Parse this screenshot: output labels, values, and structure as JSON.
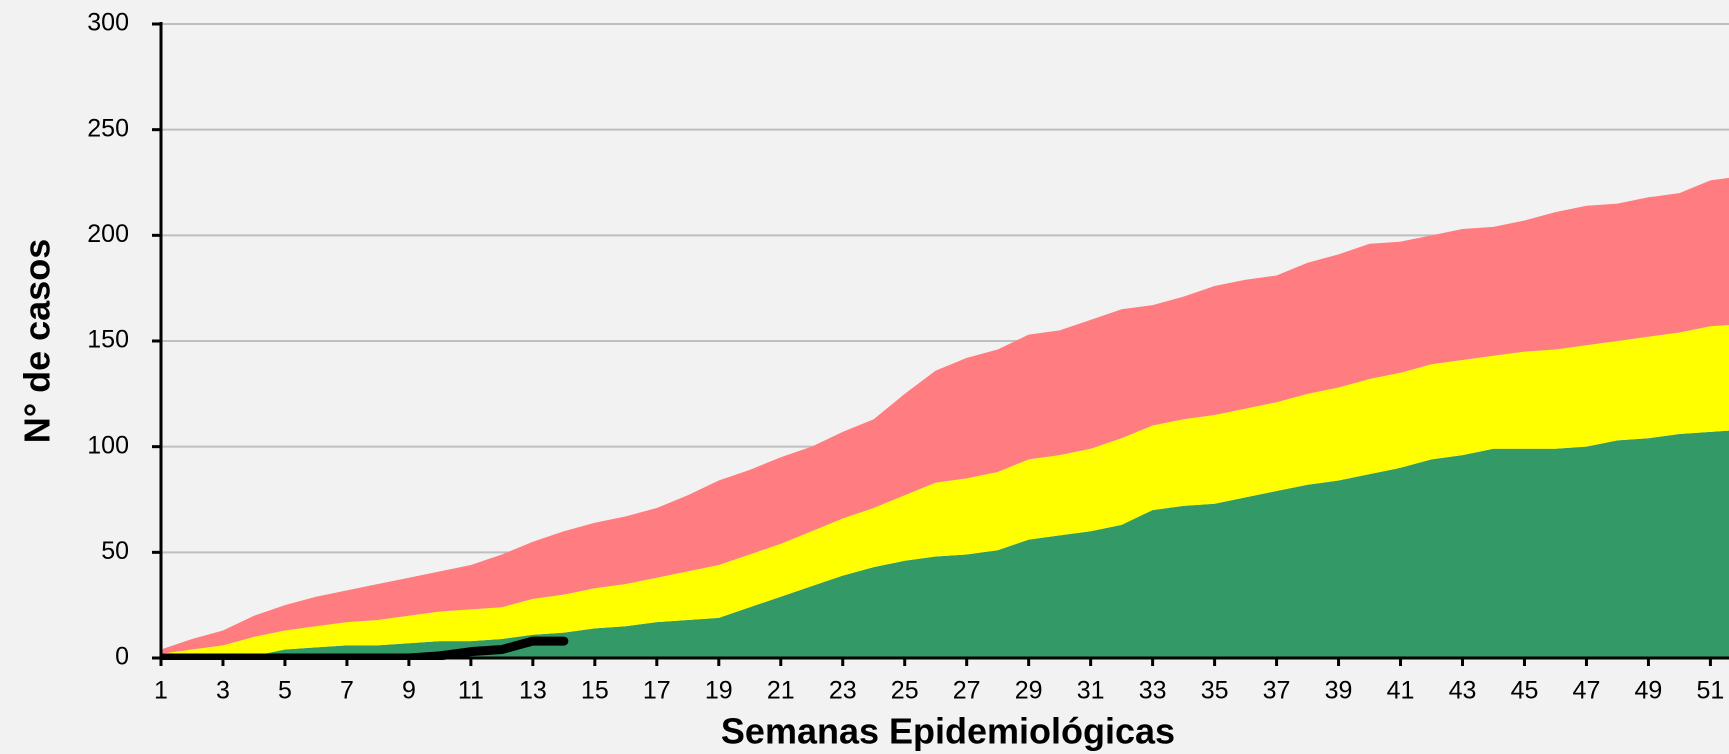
{
  "chart_data": {
    "type": "stacked_area",
    "x_label": "Semanas Epidemiológicas",
    "y_label": "N° de casos",
    "x": [
      1,
      2,
      3,
      4,
      5,
      6,
      7,
      8,
      9,
      10,
      11,
      12,
      13,
      14,
      15,
      16,
      17,
      18,
      19,
      20,
      21,
      22,
      23,
      24,
      25,
      26,
      27,
      28,
      29,
      30,
      31,
      32,
      33,
      34,
      35,
      36,
      37,
      38,
      39,
      40,
      41,
      42,
      43,
      44,
      45,
      46,
      47,
      48,
      49,
      50,
      51,
      52
    ],
    "xlim": [
      1,
      51.6
    ],
    "xticks": [
      1,
      3,
      5,
      7,
      9,
      11,
      13,
      15,
      17,
      19,
      21,
      23,
      25,
      27,
      29,
      31,
      33,
      35,
      37,
      39,
      41,
      43,
      45,
      47,
      49,
      51
    ],
    "ylim": [
      0,
      300
    ],
    "yticks": [
      0,
      50,
      100,
      150,
      200,
      250,
      300
    ],
    "grid": true,
    "series": [
      {
        "color": "#339966",
        "values": [
          0,
          0,
          0,
          1,
          4,
          5,
          6,
          6,
          7,
          8,
          8,
          9,
          11,
          12,
          14,
          15,
          17,
          18,
          19,
          24,
          29,
          34,
          39,
          43,
          46,
          48,
          49,
          51,
          56,
          58,
          60,
          63,
          70,
          72,
          73,
          76,
          79,
          82,
          84,
          87,
          90,
          94,
          96,
          99,
          99,
          99,
          100,
          103,
          104,
          106,
          107,
          108
        ]
      },
      {
        "color": "#ffff00",
        "values": [
          2,
          4,
          6,
          9,
          9,
          10,
          11,
          12,
          13,
          14,
          15,
          15,
          17,
          18,
          19,
          20,
          21,
          23,
          25,
          25,
          25,
          26,
          27,
          28,
          31,
          35,
          36,
          37,
          38,
          38,
          39,
          41,
          40,
          41,
          42,
          42,
          42,
          43,
          44,
          45,
          45,
          45,
          45,
          44,
          46,
          47,
          48,
          47,
          48,
          48,
          50,
          50
        ]
      },
      {
        "color": "#ff7c80",
        "values": [
          2,
          5,
          7,
          10,
          12,
          14,
          15,
          17,
          18,
          19,
          21,
          25,
          27,
          30,
          31,
          32,
          33,
          36,
          40,
          40,
          41,
          40,
          41,
          42,
          48,
          53,
          57,
          58,
          59,
          59,
          61,
          61,
          57,
          58,
          61,
          61,
          60,
          62,
          63,
          64,
          62,
          61,
          62,
          61,
          62,
          65,
          66,
          65,
          66,
          66,
          69,
          70
        ]
      }
    ],
    "line": {
      "color": "#000000",
      "values": [
        0,
        0,
        0,
        0,
        0,
        0,
        0,
        0,
        0,
        1,
        3,
        4,
        8,
        8,
        null,
        null,
        null,
        null,
        null,
        null,
        null,
        null,
        null,
        null,
        null,
        null,
        null,
        null,
        null,
        null,
        null,
        null,
        null,
        null,
        null,
        null,
        null,
        null,
        null,
        null,
        null,
        null,
        null,
        null,
        null,
        null,
        null,
        null,
        null,
        null,
        null,
        null
      ]
    }
  }
}
